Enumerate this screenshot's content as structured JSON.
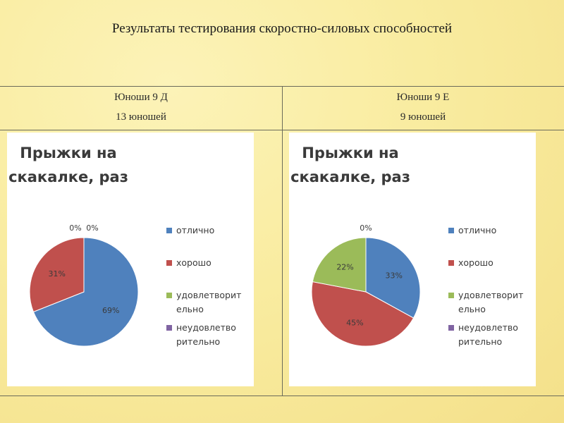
{
  "slide": {
    "title": "Результаты тестирования скоростно-силовых  способностей"
  },
  "table": {
    "columns": [
      {
        "line1": "Юноши 9 Д",
        "line2": "13 юношей"
      },
      {
        "line1": "Юноши 9 Е",
        "line2": "9 юношей"
      }
    ]
  },
  "chart_data": [
    {
      "type": "pie",
      "title_lines": [
        "Прыжки на",
        "скакалке, раз"
      ],
      "legend_position": "right",
      "slices": [
        {
          "label": "отлично",
          "legend_lines": [
            "отлично"
          ],
          "value": 69,
          "display": "69%",
          "color": "#4f81bd"
        },
        {
          "label": "хорошо",
          "legend_lines": [
            "хорошо"
          ],
          "value": 31,
          "display": "31%",
          "color": "#c0504d"
        },
        {
          "label": "удовлетворительно",
          "legend_lines": [
            "удовлетворит",
            "ельно"
          ],
          "value": 0,
          "display": "0%",
          "color": "#9bbb59"
        },
        {
          "label": "неудовлетворительно",
          "legend_lines": [
            "неудовлетво",
            "рительно"
          ],
          "value": 0,
          "display": "0%",
          "color": "#8064a2"
        }
      ]
    },
    {
      "type": "pie",
      "title_lines": [
        "Прыжки на",
        "скакалке, раз"
      ],
      "legend_position": "right",
      "slices": [
        {
          "label": "отлично",
          "legend_lines": [
            "отлично"
          ],
          "value": 33,
          "display": "33%",
          "color": "#4f81bd"
        },
        {
          "label": "хорошо",
          "legend_lines": [
            "хорошо"
          ],
          "value": 45,
          "display": "45%",
          "color": "#c0504d"
        },
        {
          "label": "удовлетворительно",
          "legend_lines": [
            "удовлетворит",
            "ельно"
          ],
          "value": 22,
          "display": "22%",
          "color": "#9bbb59"
        },
        {
          "label": "неудовлетворительно",
          "legend_lines": [
            "неудовлетво",
            "рительно"
          ],
          "value": 0,
          "display": "0%",
          "color": "#8064a2"
        }
      ]
    }
  ]
}
